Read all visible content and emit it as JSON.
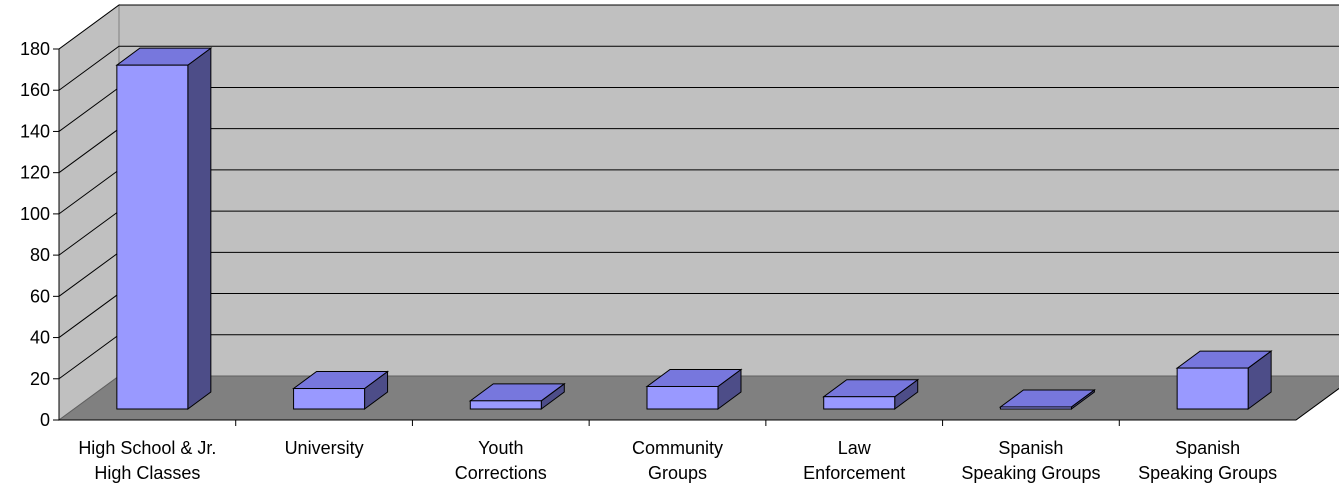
{
  "chart_data": {
    "type": "bar",
    "style": "3d-column",
    "categories": [
      [
        "High School & Jr.",
        "High Classes"
      ],
      [
        "University"
      ],
      [
        "Youth",
        "Corrections"
      ],
      [
        "Community",
        "Groups"
      ],
      [
        "Law",
        "Enforcement"
      ],
      [
        "Spanish",
        "Speaking Groups"
      ],
      [
        "Spanish",
        "Speaking Groups"
      ]
    ],
    "values": [
      168,
      10,
      4,
      11,
      6,
      1,
      20
    ],
    "ylim": [
      0,
      180
    ],
    "yticks": [
      "0",
      "20",
      "40",
      "60",
      "80",
      "100",
      "120",
      "140",
      "160",
      "180"
    ],
    "grid": true,
    "legend": "none",
    "colors": {
      "bar_front": "#9999ff",
      "bar_top": "#7777dd",
      "bar_side": "#4d4d88",
      "back_wall": "#c0c0c0",
      "side_wall": "#c0c0c0",
      "floor": "#808080",
      "gridline": "#000000"
    }
  }
}
